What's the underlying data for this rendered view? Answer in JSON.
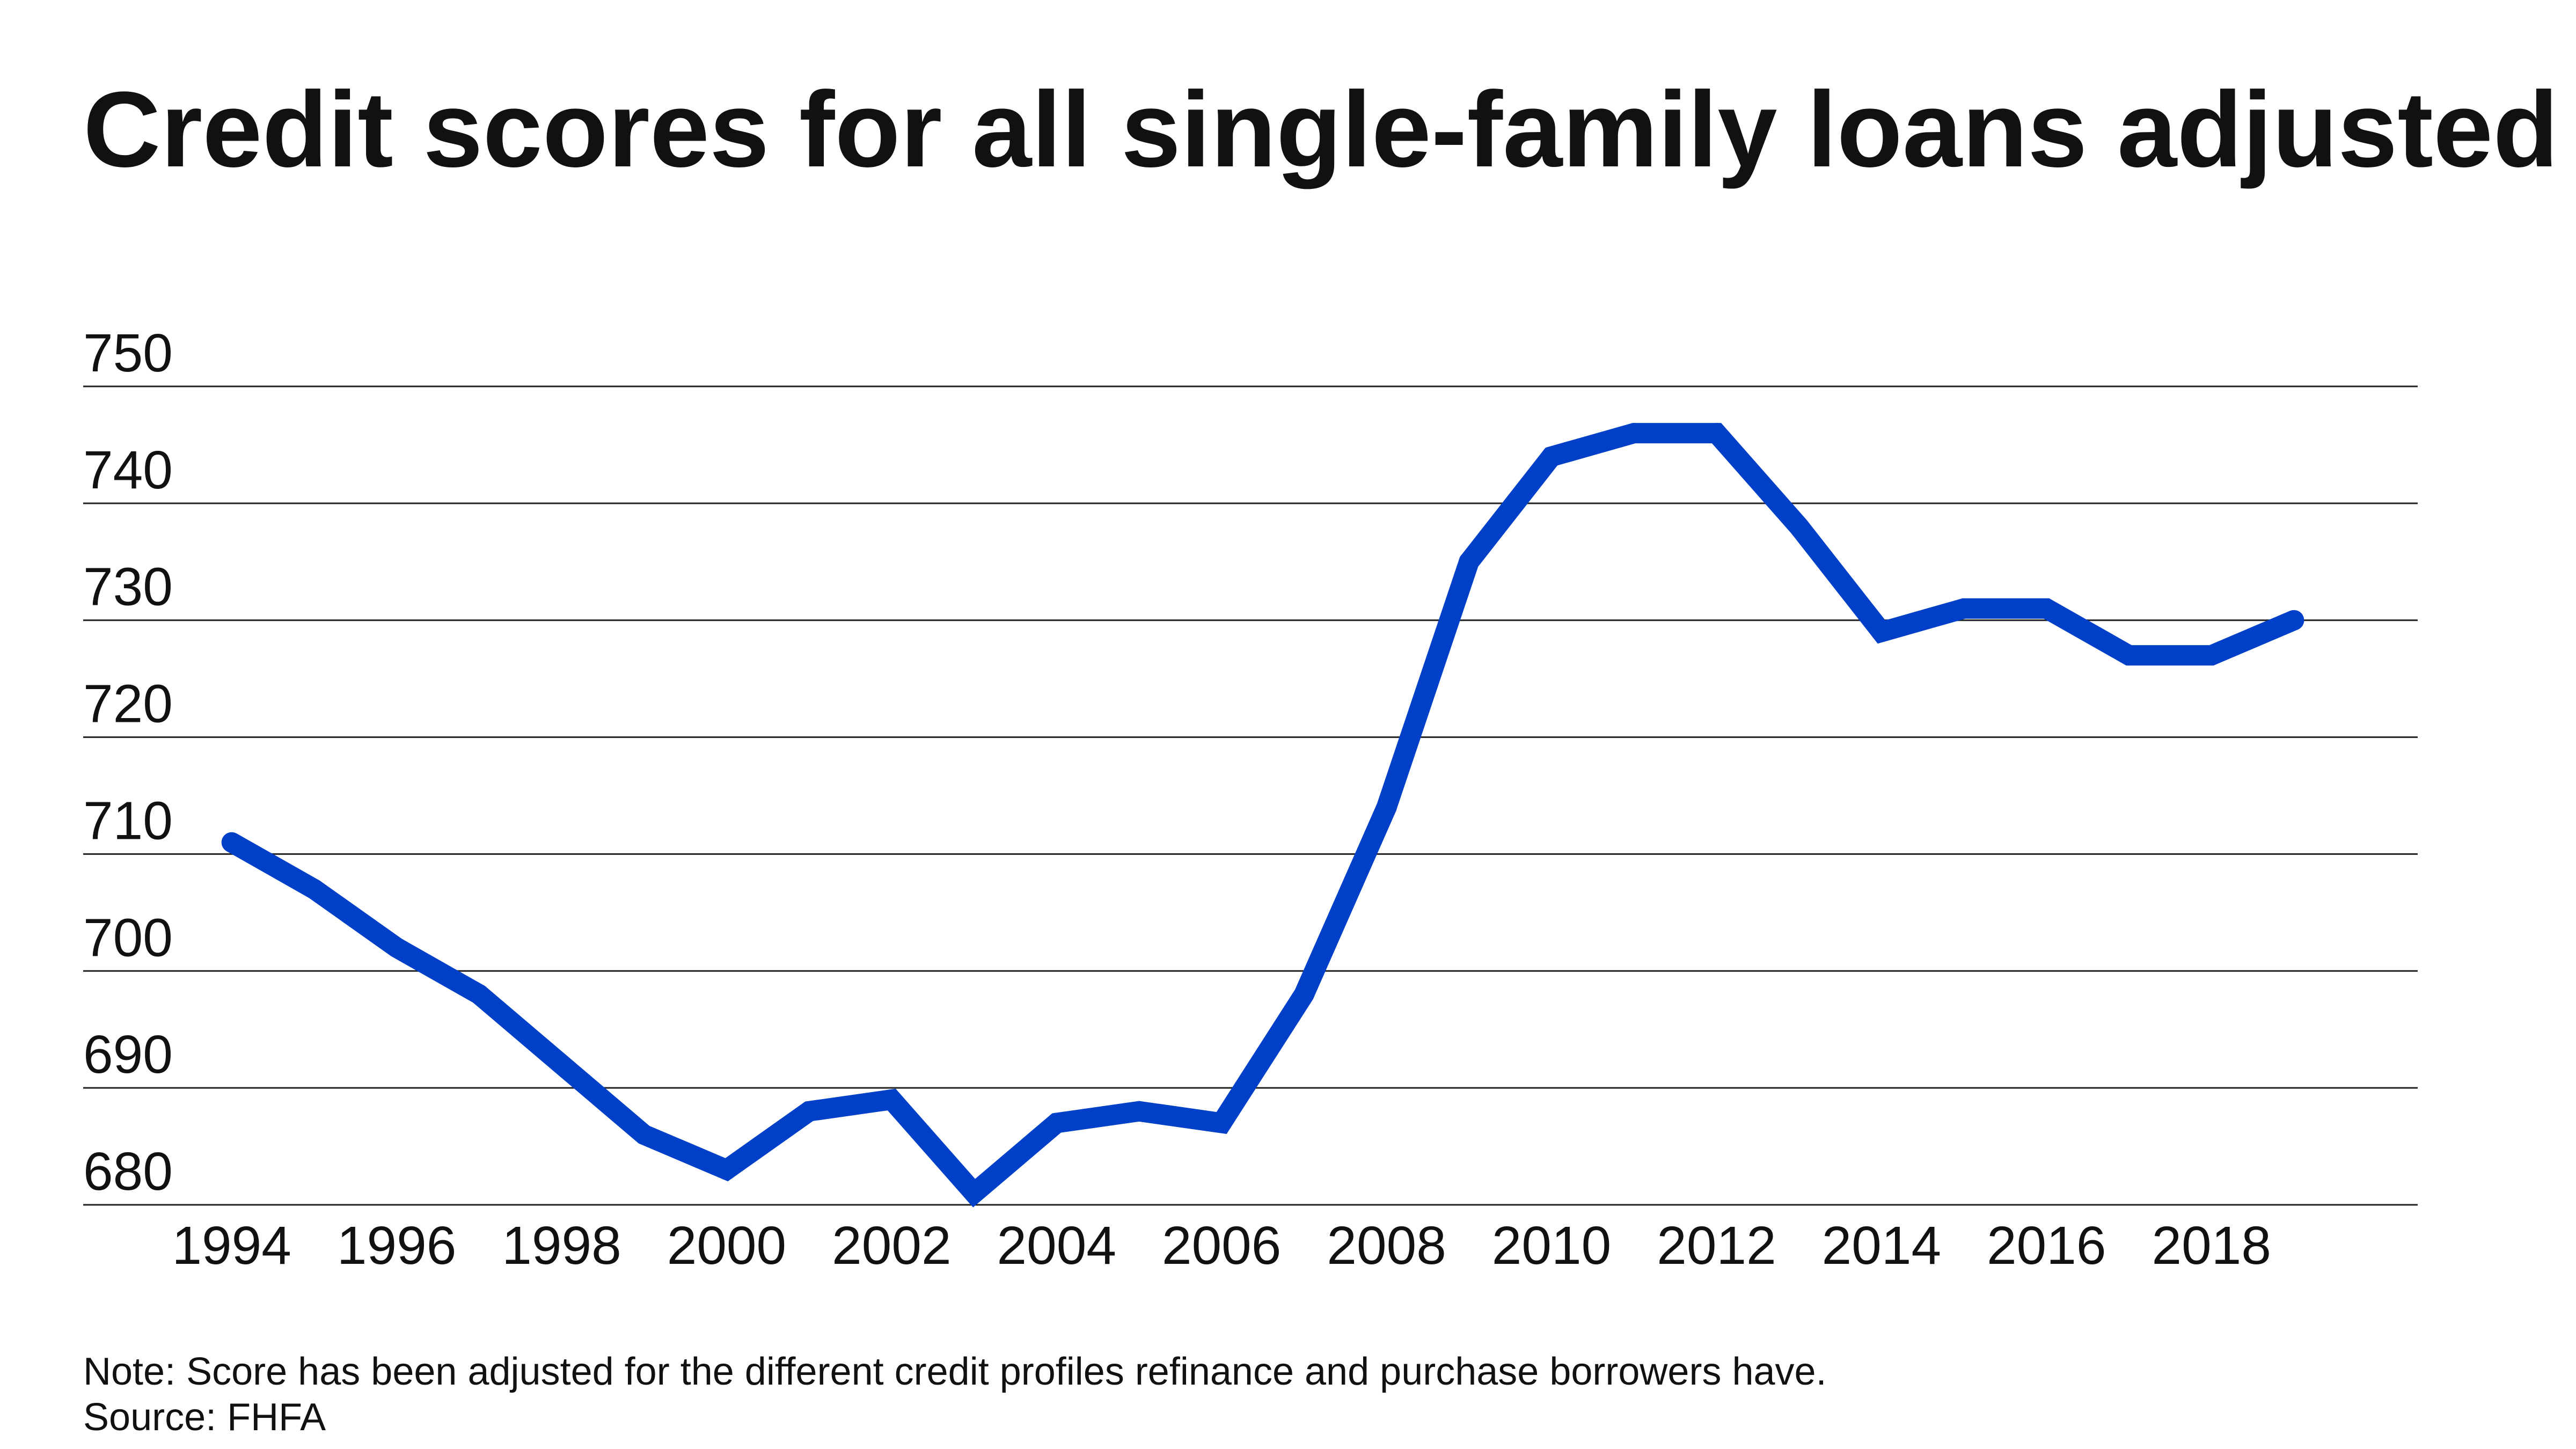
{
  "chart_data": {
    "type": "line",
    "title": "Credit scores for all single-family loans adjusted",
    "xlabel": "",
    "ylabel": "",
    "x": [
      1994,
      1995,
      1996,
      1997,
      1998,
      1999,
      2000,
      2001,
      2002,
      2003,
      2004,
      2005,
      2006,
      2007,
      2008,
      2009,
      2010,
      2011,
      2012,
      2013,
      2014,
      2015,
      2016,
      2017,
      2018,
      2019
    ],
    "series": [
      {
        "values": [
          711,
          707,
          702,
          698,
          692,
          686,
          683,
          688,
          689,
          681,
          687,
          688,
          687,
          698,
          714,
          735,
          744,
          746,
          746,
          738,
          729,
          731,
          731,
          727,
          727,
          730
        ],
        "color": "#0040c8"
      }
    ],
    "xlim": [
      1992.2,
      2020.5
    ],
    "ylim": [
      680,
      750
    ],
    "yticks": [
      "680",
      "690",
      "700",
      "710",
      "720",
      "730",
      "740",
      "750"
    ],
    "xticks": [
      "1994",
      "1996",
      "1998",
      "2000",
      "2002",
      "2004",
      "2006",
      "2008",
      "2010",
      "2012",
      "2014",
      "2016",
      "2018"
    ],
    "grid": true,
    "note": "Note: Score has been adjusted for the different credit profiles refinance and purchase borrowers have.",
    "source": "Source: FHFA"
  }
}
